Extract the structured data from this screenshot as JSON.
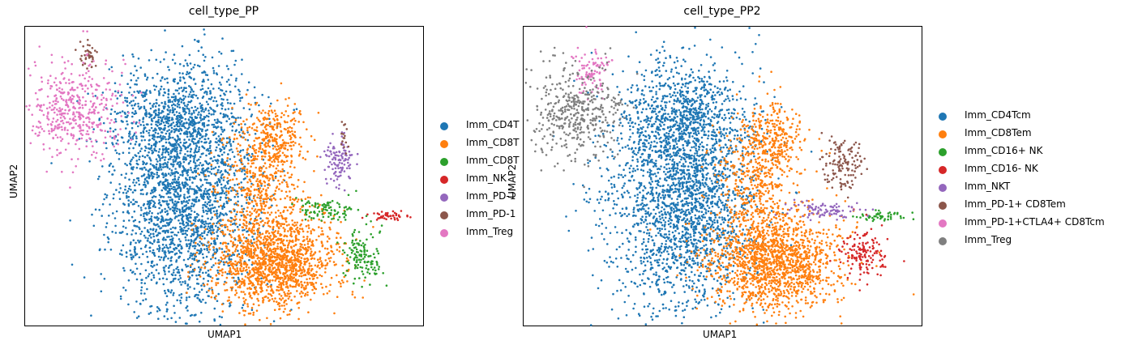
{
  "panels": [
    {
      "title": "cell_type_PP",
      "xlabel": "UMAP1",
      "ylabel": "UMAP2",
      "legend": [
        {
          "label": "Imm_CD4T",
          "color": "#1f77b4"
        },
        {
          "label": "Imm_CD8T",
          "color": "#ff7f0e"
        },
        {
          "label": "Imm_CD8T",
          "color": "#2ca02c"
        },
        {
          "label": "Imm_NK",
          "color": "#d62728"
        },
        {
          "label": "Imm_PD-1",
          "color": "#9467bd"
        },
        {
          "label": "Imm_PD-1",
          "color": "#8c564b"
        },
        {
          "label": "Imm_Treg",
          "color": "#e377c2"
        }
      ]
    },
    {
      "title": "cell_type_PP2",
      "xlabel": "UMAP1",
      "ylabel": "UMAP2",
      "legend": [
        {
          "label": "Imm_CD4Tcm",
          "color": "#1f77b4"
        },
        {
          "label": "Imm_CD8Tem",
          "color": "#ff7f0e"
        },
        {
          "label": "Imm_CD16+ NK",
          "color": "#2ca02c"
        },
        {
          "label": "Imm_CD16- NK",
          "color": "#d62728"
        },
        {
          "label": "Imm_NKT",
          "color": "#9467bd"
        },
        {
          "label": "Imm_PD-1+ CD8Tem",
          "color": "#8c564b"
        },
        {
          "label": "Imm_PD-1+CTLA4+ CD8Tcm",
          "color": "#e377c2"
        },
        {
          "label": "Imm_Treg",
          "color": "#7f7f7f"
        }
      ]
    }
  ],
  "chart_data": [
    {
      "type": "scatter",
      "title": "cell_type_PP",
      "xlabel": "UMAP1",
      "ylabel": "UMAP2",
      "xlim": [
        0,
        10
      ],
      "ylim": [
        0,
        7.5
      ],
      "grid": false,
      "ticks": false,
      "legend_position": "right-outside",
      "series": [
        {
          "name": "Imm_CD4T",
          "color": "#1f77b4",
          "clusters": [
            {
              "cx": 4.0,
              "cy": 3.3,
              "sx": 0.9,
              "sy": 1.5,
              "n": 2400
            },
            {
              "cx": 3.8,
              "cy": 5.3,
              "sx": 0.8,
              "sy": 0.6,
              "n": 500
            }
          ]
        },
        {
          "name": "Imm_CD8T",
          "color": "#ff7f0e",
          "clusters": [
            {
              "cx": 6.3,
              "cy": 1.6,
              "sx": 0.8,
              "sy": 0.6,
              "n": 1400
            },
            {
              "cx": 5.9,
              "cy": 3.5,
              "sx": 0.5,
              "sy": 0.9,
              "n": 500
            },
            {
              "cx": 6.3,
              "cy": 4.7,
              "sx": 0.35,
              "sy": 0.4,
              "n": 220
            }
          ]
        },
        {
          "name": "Imm_CD8T",
          "color": "#2ca02c",
          "clusters": [
            {
              "cx": 8.5,
              "cy": 1.8,
              "sx": 0.25,
              "sy": 0.35,
              "n": 130
            },
            {
              "cx": 7.6,
              "cy": 2.9,
              "sx": 0.4,
              "sy": 0.15,
              "n": 90
            }
          ]
        },
        {
          "name": "Imm_NK",
          "color": "#d62728",
          "clusters": [
            {
              "cx": 9.15,
              "cy": 2.75,
              "sx": 0.25,
              "sy": 0.06,
              "n": 45
            }
          ]
        },
        {
          "name": "Imm_PD-1",
          "color": "#9467bd",
          "clusters": [
            {
              "cx": 7.9,
              "cy": 4.1,
              "sx": 0.2,
              "sy": 0.3,
              "n": 110
            }
          ]
        },
        {
          "name": "Imm_PD-1",
          "color": "#8c564b",
          "clusters": [
            {
              "cx": 1.6,
              "cy": 6.8,
              "sx": 0.12,
              "sy": 0.15,
              "n": 40
            },
            {
              "cx": 8.0,
              "cy": 4.7,
              "sx": 0.08,
              "sy": 0.3,
              "n": 15
            }
          ]
        },
        {
          "name": "Imm_Treg",
          "color": "#e377c2",
          "clusters": [
            {
              "cx": 1.2,
              "cy": 5.4,
              "sx": 0.6,
              "sy": 0.6,
              "n": 450
            }
          ]
        }
      ]
    },
    {
      "type": "scatter",
      "title": "cell_type_PP2",
      "xlabel": "UMAP1",
      "ylabel": "UMAP2",
      "xlim": [
        0,
        10
      ],
      "ylim": [
        0,
        7.5
      ],
      "grid": false,
      "ticks": false,
      "legend_position": "right-outside",
      "series": [
        {
          "name": "Imm_CD4Tcm",
          "color": "#1f77b4",
          "clusters": [
            {
              "cx": 4.0,
              "cy": 3.3,
              "sx": 0.9,
              "sy": 1.5,
              "n": 2400
            },
            {
              "cx": 4.1,
              "cy": 5.3,
              "sx": 0.8,
              "sy": 0.6,
              "n": 500
            }
          ]
        },
        {
          "name": "Imm_CD8Tem",
          "color": "#ff7f0e",
          "clusters": [
            {
              "cx": 6.3,
              "cy": 1.6,
              "sx": 0.8,
              "sy": 0.6,
              "n": 1400
            },
            {
              "cx": 5.9,
              "cy": 3.5,
              "sx": 0.5,
              "sy": 0.9,
              "n": 500
            },
            {
              "cx": 6.3,
              "cy": 4.7,
              "sx": 0.35,
              "sy": 0.4,
              "n": 220
            }
          ]
        },
        {
          "name": "Imm_CD16+ NK",
          "color": "#2ca02c",
          "clusters": [
            {
              "cx": 9.0,
              "cy": 2.75,
              "sx": 0.3,
              "sy": 0.07,
              "n": 50
            }
          ]
        },
        {
          "name": "Imm_CD16- NK",
          "color": "#d62728",
          "clusters": [
            {
              "cx": 8.5,
              "cy": 1.8,
              "sx": 0.3,
              "sy": 0.35,
              "n": 140
            }
          ]
        },
        {
          "name": "Imm_NKT",
          "color": "#9467bd",
          "clusters": [
            {
              "cx": 7.5,
              "cy": 2.9,
              "sx": 0.45,
              "sy": 0.12,
              "n": 90
            }
          ]
        },
        {
          "name": "Imm_PD-1+ CD8Tem",
          "color": "#8c564b",
          "clusters": [
            {
              "cx": 8.0,
              "cy": 4.1,
              "sx": 0.25,
              "sy": 0.35,
              "n": 130
            }
          ]
        },
        {
          "name": "Imm_PD-1+CTLA4+ CD8Tcm",
          "color": "#e377c2",
          "clusters": [
            {
              "cx": 1.7,
              "cy": 6.4,
              "sx": 0.2,
              "sy": 0.3,
              "n": 90
            }
          ]
        },
        {
          "name": "Imm_Treg",
          "color": "#7f7f7f",
          "clusters": [
            {
              "cx": 1.3,
              "cy": 5.3,
              "sx": 0.6,
              "sy": 0.6,
              "n": 420
            }
          ]
        }
      ]
    }
  ]
}
